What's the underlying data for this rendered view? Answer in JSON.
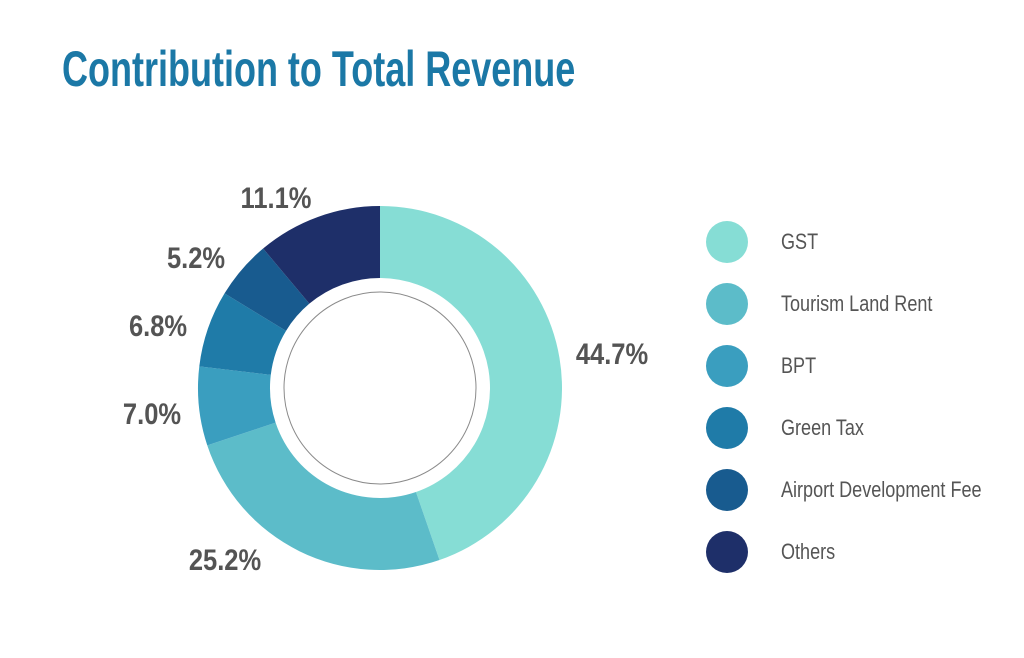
{
  "chart_data": {
    "type": "pie",
    "title": "Contribution to Total Revenue",
    "categories": [
      "GST",
      "Tourism Land Rent",
      "BPT",
      "Green Tax",
      "Airport Development Fee",
      "Others"
    ],
    "values": [
      44.7,
      25.2,
      7.0,
      6.8,
      5.2,
      11.1
    ],
    "value_labels": [
      "44.7%",
      "25.2%",
      "7.0%",
      "6.8%",
      "5.2%",
      "11.1%"
    ],
    "colors": [
      "#86ddd5",
      "#5cbcc9",
      "#3a9ebf",
      "#1f7ba8",
      "#185b8f",
      "#1e2f69"
    ],
    "legend_position": "right",
    "donut": true
  }
}
